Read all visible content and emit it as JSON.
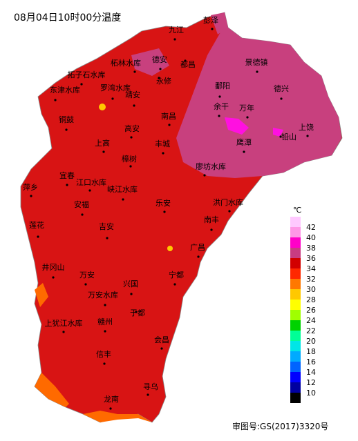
{
  "title": "08月04日10时00分温度",
  "footer": "审图号:GS(2017)3320号",
  "cities": [
    "九江",
    "彭泽",
    "柘林水库",
    "德安",
    "都昌",
    "景德镇",
    "拓子石水库",
    "永修",
    "东津水库",
    "罗湾水库",
    "靖安",
    "鄱阳",
    "德兴",
    "余干",
    "万年",
    "铜鼓",
    "南昌",
    "上饶",
    "高安",
    "铅山",
    "上高",
    "丰城",
    "鹰潭",
    "樟树",
    "廖坊水库",
    "宜春",
    "萍乡",
    "江口水库",
    "峡江水库",
    "乐安",
    "洪门水库",
    "安福",
    "南丰",
    "莲花",
    "吉安",
    "广昌",
    "井冈山",
    "万安",
    "宁都",
    "兴国",
    "万安水库",
    "于都",
    "上犹江水库",
    "赣州",
    "会昌",
    "信丰",
    "寻乌",
    "龙南"
  ],
  "legend": {
    "unit": "℃",
    "ticks": [
      42,
      40,
      38,
      36,
      34,
      32,
      30,
      28,
      26,
      24,
      22,
      20,
      18,
      16,
      14,
      12,
      10
    ],
    "colors": [
      "#ffc8ff",
      "#ff96e6",
      "#ff00c8",
      "#c83c82",
      "#d20000",
      "#ff2800",
      "#ff7800",
      "#ffc800",
      "#ffff00",
      "#a0ff00",
      "#00d200",
      "#00ff96",
      "#00e6e6",
      "#00aaff",
      "#0064ff",
      "#0000ff",
      "#0000a0",
      "#000000"
    ]
  }
}
